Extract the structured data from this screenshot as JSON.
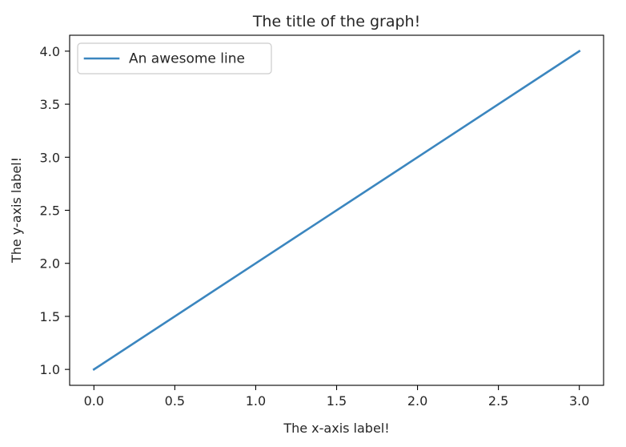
{
  "chart_data": {
    "type": "line",
    "title": "The title of the graph!",
    "xlabel": "The x-axis label!",
    "ylabel": "The y-axis label!",
    "xlim": [
      -0.15,
      3.15
    ],
    "ylim": [
      0.85,
      4.15
    ],
    "xticks": [
      0.0,
      0.5,
      1.0,
      1.5,
      2.0,
      2.5,
      3.0
    ],
    "xtick_labels": [
      "0.0",
      "0.5",
      "1.0",
      "1.5",
      "2.0",
      "2.5",
      "3.0"
    ],
    "yticks": [
      1.0,
      1.5,
      2.0,
      2.5,
      3.0,
      3.5,
      4.0
    ],
    "ytick_labels": [
      "1.0",
      "1.5",
      "2.0",
      "2.5",
      "3.0",
      "3.5",
      "4.0"
    ],
    "grid": false,
    "legend_position": "top-left",
    "series": [
      {
        "name": "An awesome line",
        "color": "#3b86bf",
        "x": [
          0,
          1,
          2,
          3
        ],
        "y": [
          1,
          2,
          3,
          4
        ]
      }
    ]
  }
}
